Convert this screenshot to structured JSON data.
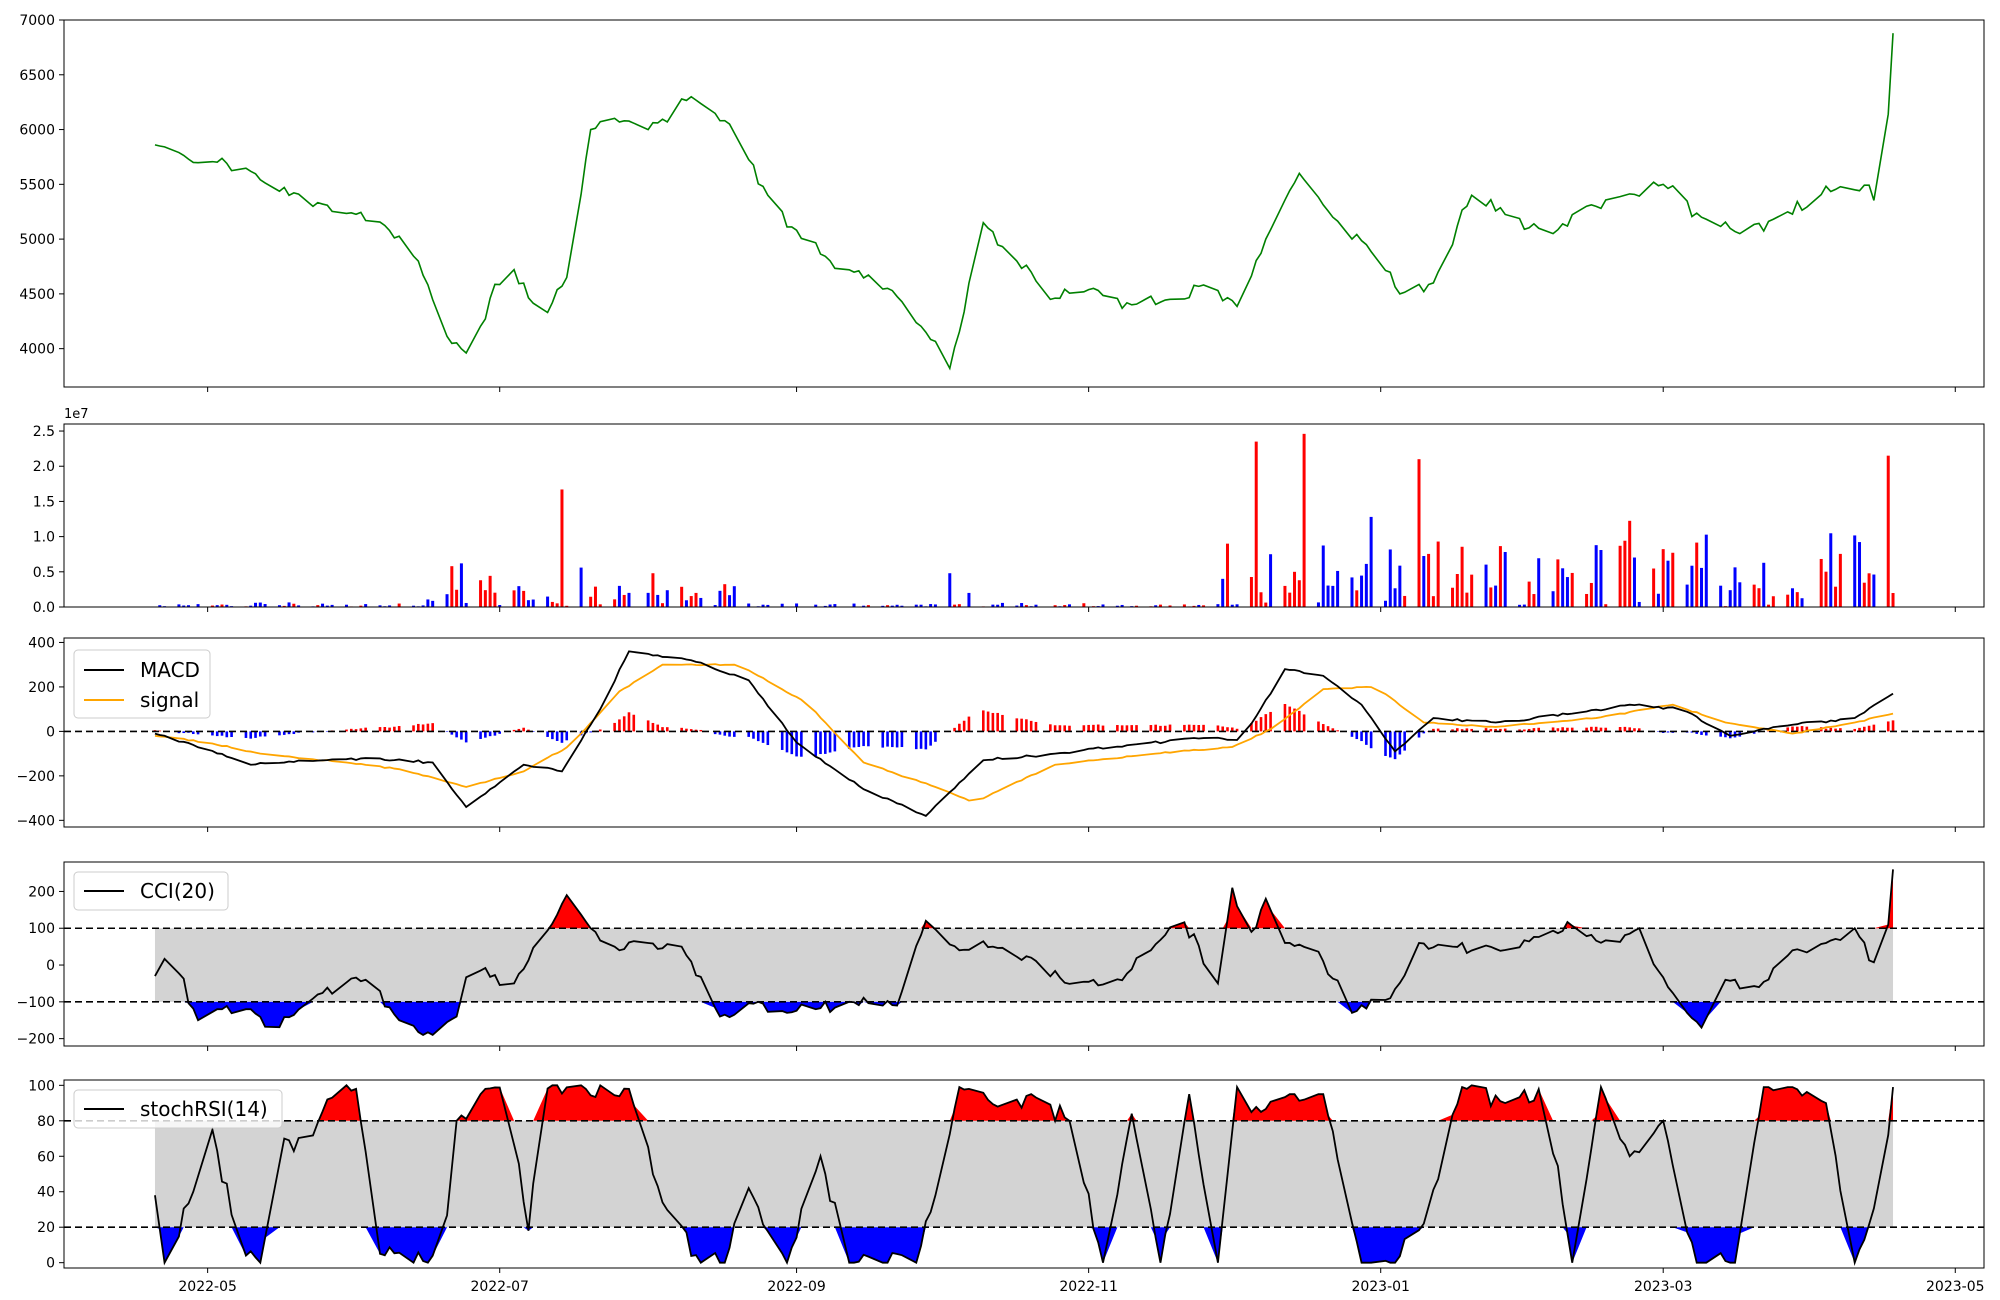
{
  "chart_data": [
    {
      "type": "line",
      "panel": "price",
      "title": "",
      "xlabel": "",
      "ylabel": "",
      "ylim": [
        3650,
        7000
      ],
      "y_ticks": [
        "4000",
        "4500",
        "5000",
        "5500",
        "6000",
        "6500",
        "7000"
      ],
      "grid": false,
      "line_color": "#008000",
      "x_range": [
        "2022-04-20",
        "2023-04-18"
      ],
      "x_knots": [
        "2022-04-20",
        "2022-04-24",
        "2022-04-28",
        "2022-05-08",
        "2022-05-15",
        "2022-05-25",
        "2022-06-05",
        "2022-06-14",
        "2022-06-19",
        "2022-06-24",
        "2022-07-03",
        "2022-07-10",
        "2022-07-15",
        "2022-07-20",
        "2022-07-27",
        "2022-08-03",
        "2022-08-10",
        "2022-08-18",
        "2022-08-26",
        "2022-09-03",
        "2022-09-12",
        "2022-09-21",
        "2022-09-28",
        "2022-10-03",
        "2022-10-10",
        "2022-10-16",
        "2022-10-24",
        "2022-11-02",
        "2022-11-10",
        "2022-11-18",
        "2022-11-26",
        "2022-12-03",
        "2022-12-08",
        "2022-12-15",
        "2022-12-22",
        "2022-12-29",
        "2023-01-05",
        "2023-01-12",
        "2023-01-20",
        "2023-01-28",
        "2023-02-06",
        "2023-02-13",
        "2023-02-21",
        "2023-03-01",
        "2023-03-09",
        "2023-03-17",
        "2023-03-25",
        "2023-04-02",
        "2023-04-10",
        "2023-04-16",
        "2023-04-18"
      ],
      "y_knots": [
        5860,
        5820,
        5700,
        5680,
        5450,
        5320,
        5200,
        4800,
        4150,
        3960,
        4800,
        4250,
        4650,
        6000,
        6080,
        6060,
        6300,
        6050,
        5400,
        4950,
        4720,
        4530,
        4150,
        3820,
        5150,
        4850,
        4450,
        4550,
        4400,
        4450,
        4600,
        4350,
        5000,
        5600,
        5200,
        4950,
        4500,
        4600,
        5400,
        5200,
        5050,
        5300,
        5400,
        5500,
        5200,
        5050,
        5200,
        5400,
        5450,
        5400,
        6880
      ],
      "seed": 11,
      "noise": 70
    },
    {
      "type": "bar",
      "panel": "volume",
      "offset_label": "1e7",
      "ylim": [
        0,
        2.6
      ],
      "y_ticks": [
        "0.0",
        "0.5",
        "1.0",
        "1.5",
        "2.0",
        "2.5"
      ],
      "grid": false,
      "colors": {
        "up": "#ff0000",
        "down": "#0000ff"
      },
      "spikes": [
        {
          "date": "2022-06-21",
          "value": 0.58,
          "dir": "up"
        },
        {
          "date": "2022-06-23",
          "value": 0.62,
          "dir": "down"
        },
        {
          "date": "2022-06-27",
          "value": 0.38,
          "dir": "up"
        },
        {
          "date": "2022-07-14",
          "value": 1.67,
          "dir": "up"
        },
        {
          "date": "2022-07-17",
          "value": 0.35,
          "dir": "down"
        },
        {
          "date": "2022-07-18",
          "value": 0.56,
          "dir": "down"
        },
        {
          "date": "2022-07-26",
          "value": 0.3,
          "dir": "down"
        },
        {
          "date": "2022-08-02",
          "value": 0.48,
          "dir": "up"
        },
        {
          "date": "2022-08-11",
          "value": 0.2,
          "dir": "up"
        },
        {
          "date": "2022-10-01",
          "value": 0.51,
          "dir": "up"
        },
        {
          "date": "2022-10-03",
          "value": 0.48,
          "dir": "down"
        },
        {
          "date": "2022-10-07",
          "value": 0.2,
          "dir": "down"
        },
        {
          "date": "2022-11-30",
          "value": 0.9,
          "dir": "up"
        },
        {
          "date": "2022-12-06",
          "value": 2.35,
          "dir": "up"
        },
        {
          "date": "2022-12-09",
          "value": 0.75,
          "dir": "down"
        },
        {
          "date": "2022-12-10",
          "value": 0.38,
          "dir": "down"
        },
        {
          "date": "2022-12-16",
          "value": 2.46,
          "dir": "up"
        },
        {
          "date": "2022-12-22",
          "value": 0.3,
          "dir": "down"
        },
        {
          "date": "2023-01-09",
          "value": 2.1,
          "dir": "up"
        },
        {
          "date": "2023-01-13",
          "value": 0.93,
          "dir": "up"
        },
        {
          "date": "2023-02-08",
          "value": 0.55,
          "dir": "down"
        },
        {
          "date": "2023-04-17",
          "value": 2.15,
          "dir": "up"
        }
      ],
      "seed": 23
    },
    {
      "type": "line",
      "panel": "macd",
      "ylim": [
        -430,
        420
      ],
      "y_ticks": [
        "−400",
        "−200",
        "0",
        "200",
        "400"
      ],
      "grid": false,
      "series": [
        {
          "name": "MACD",
          "color": "#000000",
          "x_knots": [
            "2022-04-20",
            "2022-05-01",
            "2022-05-10",
            "2022-05-25",
            "2022-06-05",
            "2022-06-17",
            "2022-06-24",
            "2022-07-06",
            "2022-07-14",
            "2022-07-22",
            "2022-07-28",
            "2022-08-10",
            "2022-08-22",
            "2022-09-01",
            "2022-09-15",
            "2022-09-28",
            "2022-10-10",
            "2022-10-25",
            "2022-11-10",
            "2022-11-25",
            "2022-12-03",
            "2022-12-12",
            "2022-12-20",
            "2022-12-28",
            "2023-01-04",
            "2023-01-12",
            "2023-01-25",
            "2023-02-10",
            "2023-02-22",
            "2023-03-05",
            "2023-03-15",
            "2023-03-28",
            "2023-04-10",
            "2023-04-18"
          ],
          "y_knots": [
            -10,
            -80,
            -150,
            -130,
            -120,
            -140,
            -340,
            -150,
            -180,
            100,
            360,
            320,
            230,
            -50,
            -260,
            -380,
            -130,
            -100,
            -60,
            -30,
            -40,
            280,
            250,
            120,
            -90,
            60,
            40,
            80,
            120,
            100,
            -20,
            30,
            60,
            170
          ]
        },
        {
          "name": "signal",
          "color": "#ffa500",
          "x_knots": [
            "2022-04-20",
            "2022-05-01",
            "2022-05-12",
            "2022-05-30",
            "2022-06-10",
            "2022-06-24",
            "2022-07-06",
            "2022-07-16",
            "2022-07-26",
            "2022-08-04",
            "2022-08-20",
            "2022-09-03",
            "2022-09-15",
            "2022-09-30",
            "2022-10-08",
            "2022-10-25",
            "2022-11-15",
            "2022-12-01",
            "2022-12-10",
            "2022-12-20",
            "2022-12-31",
            "2023-01-10",
            "2023-01-25",
            "2023-02-15",
            "2023-03-03",
            "2023-03-14",
            "2023-03-28",
            "2023-04-10",
            "2023-04-18"
          ],
          "y_knots": [
            -20,
            -50,
            -100,
            -140,
            -170,
            -250,
            -180,
            -60,
            180,
            300,
            300,
            130,
            -140,
            -250,
            -320,
            -150,
            -100,
            -70,
            20,
            190,
            200,
            40,
            20,
            60,
            120,
            40,
            -10,
            40,
            80
          ]
        }
      ],
      "histogram": {
        "up_color": "#ff0000",
        "down_color": "#0000ff"
      },
      "legend": [
        "MACD",
        "signal"
      ],
      "legend_loc": "upper-left",
      "zero_line": 0
    },
    {
      "type": "line",
      "panel": "cci",
      "ylim": [
        -220,
        280
      ],
      "y_ticks": [
        "−200",
        "−100",
        "0",
        "100",
        "200"
      ],
      "grid": false,
      "line_color": "#000000",
      "band": [
        -100,
        100
      ],
      "band_color": "#d3d3d3",
      "over_color": "#ff0000",
      "under_color": "#0000ff",
      "legend": [
        "CCI(20)"
      ],
      "legend_loc": "upper-left",
      "x_knots": [
        "2022-04-20",
        "2022-04-23",
        "2022-04-29",
        "2022-05-03",
        "2022-05-10",
        "2022-05-15",
        "2022-05-24",
        "2022-06-03",
        "2022-06-10",
        "2022-06-15",
        "2022-06-22",
        "2022-06-25",
        "2022-07-03",
        "2022-07-10",
        "2022-07-15",
        "2022-07-20",
        "2022-07-26",
        "2022-08-01",
        "2022-08-08",
        "2022-08-16",
        "2022-08-24",
        "2022-08-30",
        "2022-09-05",
        "2022-09-12",
        "2022-09-22",
        "2022-09-28",
        "2022-10-05",
        "2022-10-12",
        "2022-10-20",
        "2022-10-29",
        "2022-11-06",
        "2022-11-14",
        "2022-11-20",
        "2022-11-28",
        "2022-12-01",
        "2022-12-04",
        "2022-12-08",
        "2022-12-12",
        "2022-12-18",
        "2022-12-26",
        "2023-01-03",
        "2023-01-09",
        "2023-01-16",
        "2023-01-28",
        "2023-02-05",
        "2023-02-11",
        "2023-02-18",
        "2023-02-24",
        "2023-03-02",
        "2023-03-09",
        "2023-03-14",
        "2023-03-21",
        "2023-03-28",
        "2023-04-04",
        "2023-04-10",
        "2023-04-16",
        "2023-04-18"
      ],
      "y_knots": [
        -30,
        40,
        -150,
        -120,
        -120,
        -180,
        -80,
        -40,
        -150,
        -190,
        -140,
        20,
        -70,
        70,
        190,
        100,
        40,
        60,
        50,
        -140,
        -100,
        -130,
        -120,
        -100,
        -110,
        120,
        40,
        50,
        20,
        -60,
        -50,
        40,
        140,
        -50,
        210,
        60,
        180,
        60,
        60,
        -130,
        -90,
        60,
        50,
        40,
        90,
        110,
        60,
        100,
        -60,
        -170,
        -40,
        -60,
        40,
        60,
        100,
        -40,
        260
      ],
      "seed": 37,
      "noise": 18
    },
    {
      "type": "line",
      "panel": "stochrsi",
      "ylim": [
        -3,
        103
      ],
      "y_ticks": [
        "0",
        "20",
        "40",
        "60",
        "80",
        "100"
      ],
      "grid": false,
      "line_color": "#000000",
      "band": [
        20,
        80
      ],
      "band_color": "#d3d3d3",
      "over_color": "#ff0000",
      "under_color": "#0000ff",
      "legend": [
        "stochRSI(14)"
      ],
      "legend_loc": "upper-left",
      "x_knots": [
        "2022-04-20",
        "2022-04-22",
        "2022-04-28",
        "2022-05-02",
        "2022-05-07",
        "2022-05-12",
        "2022-05-17",
        "2022-05-22",
        "2022-05-26",
        "2022-06-01",
        "2022-06-06",
        "2022-06-12",
        "2022-06-19",
        "2022-06-22",
        "2022-06-28",
        "2022-07-02",
        "2022-07-07",
        "2022-07-10",
        "2022-07-16",
        "2022-07-28",
        "2022-08-04",
        "2022-08-12",
        "2022-08-17",
        "2022-08-22",
        "2022-08-30",
        "2022-09-06",
        "2022-09-12",
        "2022-09-18",
        "2022-09-26",
        "2022-09-30",
        "2022-10-05",
        "2022-10-13",
        "2022-10-20",
        "2022-10-28",
        "2022-11-04",
        "2022-11-10",
        "2022-11-16",
        "2022-11-22",
        "2022-11-28",
        "2022-12-02",
        "2022-12-07",
        "2022-12-13",
        "2022-12-20",
        "2022-12-28",
        "2023-01-04",
        "2023-01-10",
        "2023-01-18",
        "2023-01-27",
        "2023-02-04",
        "2023-02-10",
        "2023-02-16",
        "2023-02-22",
        "2023-03-01",
        "2023-03-08",
        "2023-03-16",
        "2023-03-22",
        "2023-03-28",
        "2023-04-04",
        "2023-04-10",
        "2023-04-16",
        "2023-04-18"
      ],
      "y_knots": [
        38,
        0,
        40,
        75,
        15,
        0,
        70,
        65,
        92,
        98,
        5,
        0,
        0,
        80,
        98,
        99,
        18,
        98,
        99,
        98,
        34,
        0,
        0,
        42,
        0,
        60,
        0,
        0,
        0,
        38,
        99,
        88,
        95,
        80,
        0,
        84,
        0,
        95,
        0,
        99,
        85,
        95,
        95,
        0,
        0,
        22,
        99,
        90,
        99,
        0,
        99,
        60,
        80,
        0,
        0,
        99,
        99,
        90,
        0,
        45,
        99
      ],
      "seed": 53,
      "noise": 6
    }
  ],
  "x_axis": {
    "tick_labels": [
      "2022-05",
      "2022-07",
      "2022-09",
      "2022-11",
      "2023-01",
      "2023-03",
      "2023-05"
    ],
    "tick_dates": [
      "2022-05-01",
      "2022-07-01",
      "2022-09-01",
      "2022-11-01",
      "2023-01-01",
      "2023-03-01",
      "2023-05-01"
    ]
  }
}
